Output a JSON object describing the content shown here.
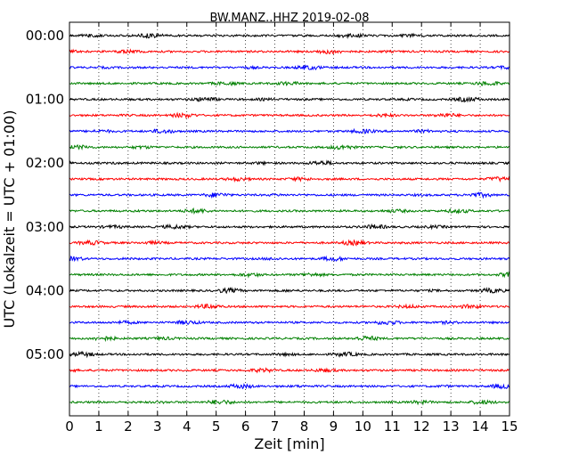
{
  "chart_data": {
    "type": "line",
    "title": "BW.MANZ..HHZ 2019-02-08",
    "xlabel": "Zeit  [min]",
    "ylabel": "UTC (Lokalzeit = UTC + 01:00)",
    "xlim": [
      0,
      15
    ],
    "x_ticks": [
      "0",
      "1",
      "2",
      "3",
      "4",
      "5",
      "6",
      "7",
      "8",
      "9",
      "10",
      "11",
      "12",
      "13",
      "14",
      "15"
    ],
    "y_ticks": [
      "00:00",
      "01:00",
      "02:00",
      "03:00",
      "04:00",
      "05:00"
    ],
    "grid": "vertical dotted",
    "trace_interval_min": 15,
    "trace_count": 24,
    "trace_colors": [
      "#000000",
      "#ff0000",
      "#0000ff",
      "#008000"
    ]
  }
}
